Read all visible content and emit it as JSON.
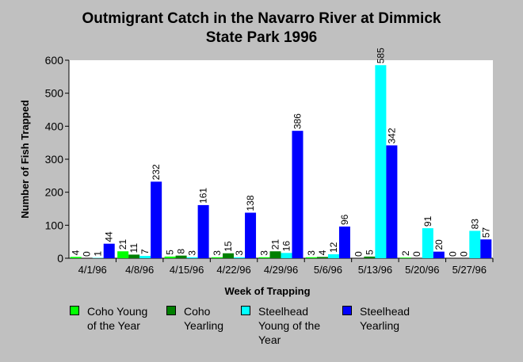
{
  "chart_data": {
    "type": "bar",
    "title_lines": [
      "Outmigrant Catch in the Navarro River at Dimmick",
      "State Park 1996"
    ],
    "xlabel": "Week of Trapping",
    "ylabel": "Number of Fish Trapped",
    "ylim": [
      0,
      600
    ],
    "yticks": [
      0,
      100,
      200,
      300,
      400,
      500,
      600
    ],
    "grid": false,
    "legend_position": "bottom",
    "categories": [
      "4/1/96",
      "4/8/96",
      "4/15/96",
      "4/22/96",
      "4/29/96",
      "5/6/96",
      "5/13/96",
      "5/20/96",
      "5/27/96"
    ],
    "series": [
      {
        "name": "Coho Young of the Year",
        "color": "#00ff00",
        "values": [
          4,
          21,
          5,
          3,
          3,
          3,
          0,
          2,
          0
        ]
      },
      {
        "name": "Coho Yearling",
        "color": "#008000",
        "values": [
          0,
          11,
          8,
          15,
          21,
          4,
          5,
          0,
          0
        ]
      },
      {
        "name": "Steelhead Young of the Year",
        "color": "#00ffff",
        "values": [
          1,
          7,
          3,
          3,
          16,
          12,
          585,
          91,
          83
        ]
      },
      {
        "name": "Steelhead Yearling",
        "color": "#0000ff",
        "values": [
          44,
          232,
          161,
          138,
          386,
          96,
          342,
          20,
          57
        ]
      }
    ]
  },
  "legend": {
    "items": [
      {
        "lines": [
          "Coho Young",
          "of the Year"
        ],
        "color": "#00ff00"
      },
      {
        "lines": [
          "Coho",
          "Yearling"
        ],
        "color": "#008000"
      },
      {
        "lines": [
          "Steelhead",
          "Young of the",
          "Year"
        ],
        "color": "#00ffff"
      },
      {
        "lines": [
          "Steelhead",
          "Yearling"
        ],
        "color": "#0000ff"
      }
    ]
  }
}
